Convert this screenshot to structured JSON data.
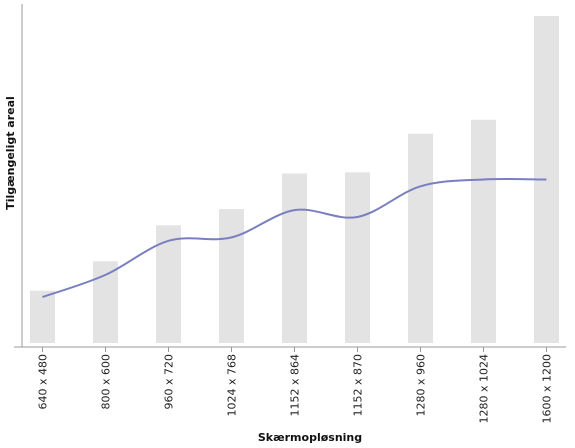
{
  "chart_data": {
    "type": "bar",
    "title": "",
    "xlabel": "Skærmopløsning",
    "ylabel": "Tilgængeligt areal",
    "categories": [
      "640 x 480",
      "800 x 600",
      "960 x 720",
      "1024 x 768",
      "1152 x 864",
      "1152 x 870",
      "1280 x 960",
      "1280 x 1024",
      "1600 x 1200"
    ],
    "series": [
      {
        "type": "bar",
        "values": [
          307200,
          480000,
          691200,
          786432,
          995328,
          1002240,
          1228800,
          1310720,
          1920000
        ]
      },
      {
        "type": "line",
        "values": [
          270000,
          400000,
          600000,
          620000,
          780000,
          740000,
          920000,
          960000,
          960000
        ]
      }
    ],
    "ylim": [
      0,
      1920000
    ],
    "grid": false,
    "colors": {
      "bar": "#e3e3e3",
      "line": "#7a7fc0",
      "axis": "#999999"
    }
  }
}
